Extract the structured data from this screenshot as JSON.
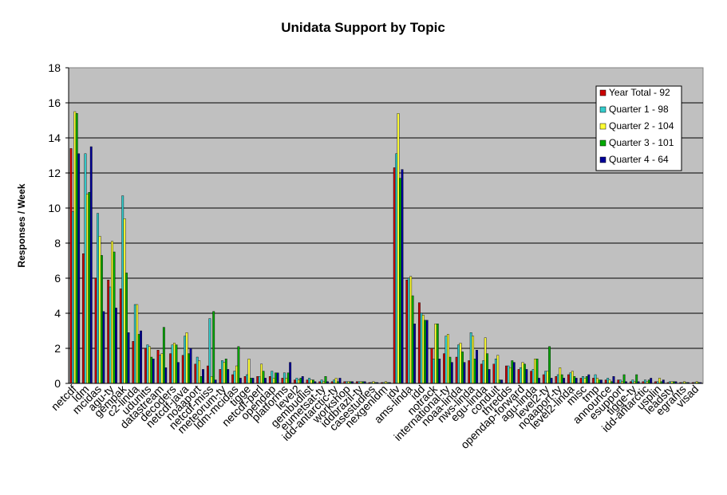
{
  "chart_data": {
    "type": "bar",
    "title": "Unidata Support by Topic",
    "xlabel": "",
    "ylabel": "Responses / Week",
    "ylim": [
      0,
      18
    ],
    "yticks": [
      "0",
      "2",
      "4",
      "6",
      "8",
      "10",
      "12",
      "14",
      "16",
      "18"
    ],
    "grid": true,
    "legend_position": "right",
    "categories": [
      "netcdf",
      "ldm",
      "mcidas",
      "agu-ty",
      "gempak",
      "c2-linda",
      "udunits",
      "datastream",
      "decoders",
      "netcdf-java",
      "noaaport",
      "netcdf-miss",
      "meteorum-ty",
      "ldm-mcidas",
      "tigge",
      "netcdf-perl",
      "opendap",
      "platforms",
      "level2",
      "gembudlist",
      "eumetsat-ty",
      "idd-antarctic-ty",
      "workshop",
      "iddbrazil-ty",
      "casestudies",
      "nexgenldm",
      "idv",
      "ams-linda",
      "idd",
      "notrack",
      "international-ty",
      "noaa-linda",
      "nws-linda",
      "egu-linda",
      "conduit",
      "thredds",
      "opendap-forward",
      "agu-linda",
      "level2-ty",
      "noaaport-ty",
      "level2-linda",
      "misc",
      "tmp",
      "announce",
      "esupport",
      "tigge-ty",
      "idd-antarctic",
      "usplin",
      "leadsty",
      "egrants",
      "visad"
    ],
    "series": [
      {
        "name": "Year Total - 92",
        "color": "#cc0000",
        "values": [
          13.4,
          7.4,
          6.0,
          5.9,
          5.4,
          2.4,
          2.0,
          1.9,
          1.7,
          1.6,
          1.1,
          1.0,
          0.8,
          0.5,
          0.4,
          0.4,
          0.4,
          0.3,
          0.2,
          0.2,
          0.1,
          0.1,
          0.1,
          0.1,
          0.05,
          0.05,
          12.3,
          5.9,
          4.6,
          2.0,
          1.7,
          1.5,
          1.3,
          1.1,
          1.1,
          1.0,
          0.8,
          0.7,
          0.5,
          0.4,
          0.5,
          0.3,
          0.3,
          0.2,
          0.2,
          0.1,
          0.1,
          0.1,
          0.05,
          0.05,
          0.05
        ]
      },
      {
        "name": "Quarter 1 - 98",
        "color": "#33cccc",
        "values": [
          9.8,
          13.1,
          9.7,
          5.5,
          10.7,
          4.5,
          2.2,
          1.6,
          2.2,
          2.7,
          1.5,
          3.7,
          1.3,
          0.7,
          0.5,
          0.4,
          0.7,
          0.6,
          0.3,
          0.3,
          0.2,
          0.2,
          0.1,
          0.1,
          0.05,
          0.05,
          13.1,
          6.0,
          4.0,
          1.4,
          2.7,
          2.2,
          2.9,
          1.3,
          1.4,
          1.0,
          0.9,
          0.8,
          0.7,
          0.5,
          0.6,
          0.4,
          0.5,
          0.3,
          0.2,
          0.2,
          0.2,
          0.1,
          0.1,
          0.05,
          0.05
        ]
      },
      {
        "name": "Quarter 2 - 104",
        "color": "#ffff33",
        "values": [
          15.5,
          10.8,
          8.4,
          8.1,
          9.4,
          4.5,
          2.1,
          1.7,
          2.3,
          2.9,
          1.3,
          0.4,
          1.2,
          1.0,
          1.4,
          1.1,
          0.3,
          0.3,
          0.2,
          0.2,
          0.1,
          0.3,
          0.1,
          0.1,
          0.1,
          0.1,
          15.4,
          6.1,
          3.9,
          3.4,
          2.8,
          2.3,
          2.7,
          2.6,
          1.6,
          0.9,
          1.2,
          1.4,
          0.7,
          0.9,
          0.7,
          0.3,
          0.3,
          0.2,
          0.1,
          0.1,
          0.1,
          0.3,
          0.1,
          0.1,
          0.1
        ]
      },
      {
        "name": "Quarter 3 - 101",
        "color": "#00aa00",
        "values": [
          15.4,
          10.9,
          7.3,
          7.5,
          6.3,
          2.8,
          1.5,
          3.2,
          2.2,
          1.7,
          0.4,
          4.1,
          1.4,
          2.1,
          0.3,
          0.7,
          0.6,
          0.6,
          0.3,
          0.2,
          0.4,
          0.1,
          0.1,
          0.1,
          0.05,
          0.05,
          11.7,
          5.0,
          3.6,
          3.4,
          1.5,
          1.8,
          1.4,
          1.7,
          0.2,
          1.3,
          1.1,
          1.4,
          2.1,
          0.5,
          0.4,
          0.4,
          0.2,
          0.1,
          0.5,
          0.5,
          0.2,
          0.1,
          0.1,
          0.05,
          0.05
        ]
      },
      {
        "name": "Quarter 4 - 64",
        "color": "#000099",
        "values": [
          13.1,
          13.5,
          4.1,
          4.3,
          2.9,
          3.0,
          1.4,
          0.9,
          1.2,
          2.0,
          0.8,
          0.2,
          0.8,
          0.3,
          0.3,
          0.3,
          0.6,
          1.2,
          0.4,
          0.1,
          0.1,
          0.3,
          0.1,
          0.1,
          0.05,
          0.05,
          12.2,
          3.4,
          3.6,
          1.4,
          1.2,
          1.2,
          1.9,
          0.8,
          0.2,
          1.2,
          0.8,
          0.3,
          0.3,
          0.3,
          0.3,
          0.5,
          0.2,
          0.4,
          0.1,
          0.1,
          0.3,
          0.2,
          0.1,
          0.05,
          0.05
        ]
      }
    ]
  }
}
